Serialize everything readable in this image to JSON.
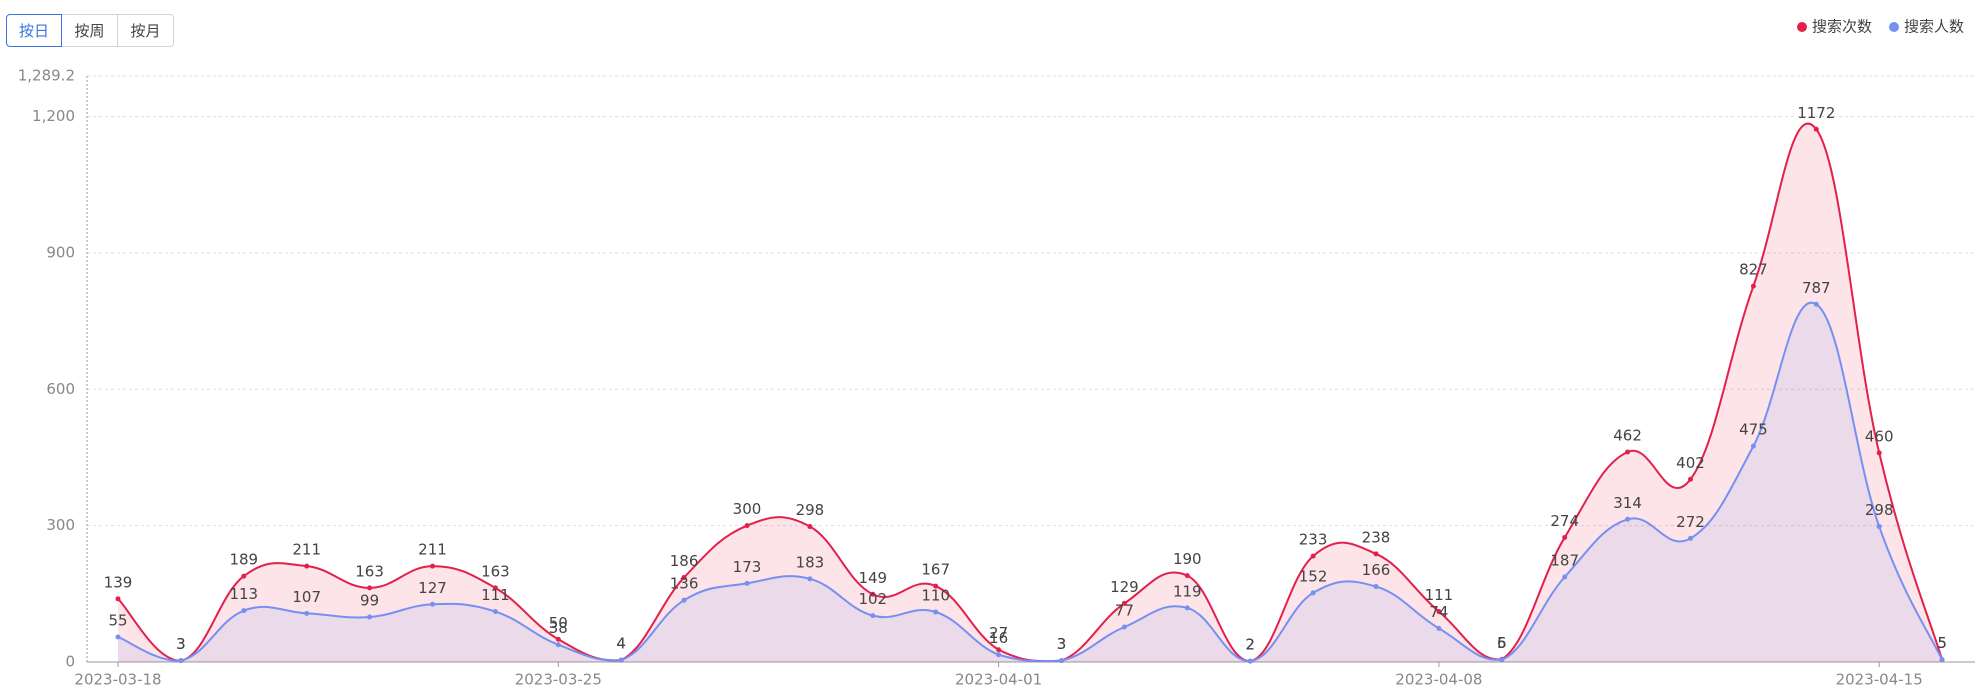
{
  "buttons": [
    "按日",
    "按周",
    "按月"
  ],
  "chart_data": {
    "type": "line",
    "smooth": true,
    "area": true,
    "categories": [
      "2023-03-18",
      null,
      null,
      null,
      null,
      null,
      null,
      "2023-03-25",
      null,
      null,
      null,
      null,
      null,
      null,
      "2023-04-01",
      null,
      null,
      null,
      null,
      null,
      null,
      "2023-04-08",
      null,
      null,
      null,
      null,
      null,
      null,
      "2023-04-15",
      null
    ],
    "series": [
      {
        "name": "搜索次数",
        "color": "#e3204a",
        "values": [
          139,
          3,
          189,
          211,
          163,
          211,
          163,
          50,
          4,
          186,
          300,
          298,
          149,
          167,
          27,
          3,
          129,
          190,
          2,
          233,
          238,
          111,
          6,
          274,
          462,
          402,
          827,
          1172,
          460,
          5
        ]
      },
      {
        "name": "搜索人数",
        "color": "#7690f2",
        "values": [
          55,
          3,
          113,
          107,
          99,
          127,
          111,
          38,
          4,
          136,
          173,
          183,
          102,
          110,
          16,
          3,
          77,
          119,
          2,
          152,
          166,
          74,
          5,
          187,
          314,
          272,
          475,
          787,
          298,
          5
        ]
      }
    ],
    "ylim": [
      0,
      1289.2
    ],
    "yticks": [
      0,
      300,
      600,
      900,
      {
        "value": 1200,
        "label": "1,200"
      },
      {
        "value": 1289.2,
        "label": "1,289.2"
      }
    ],
    "grid": true,
    "legend": "top-right"
  }
}
